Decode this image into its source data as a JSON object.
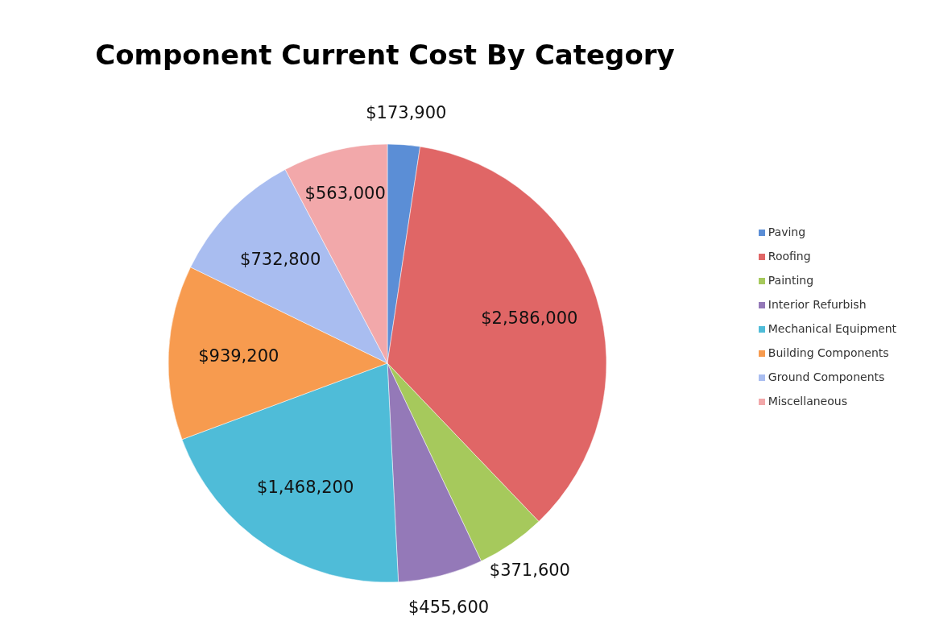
{
  "chart_data": {
    "type": "pie",
    "title": "Component Current Cost By Category",
    "categories": [
      "Paving",
      "Roofing",
      "Painting",
      "Interior Refurbish",
      "Mechanical Equipment",
      "Building Components",
      "Ground Components",
      "Miscellaneous"
    ],
    "values": [
      173900,
      2586000,
      371600,
      455600,
      1468200,
      939200,
      732800,
      563000
    ],
    "value_labels": [
      "$173,900",
      "$2,586,000",
      "$371,600",
      "$455,600",
      "$1,468,200",
      "$939,200",
      "$732,800",
      "$563,000"
    ],
    "colors": [
      "#5b8ed6",
      "#e06666",
      "#a6c95c",
      "#9479b8",
      "#4fbcd8",
      "#f79b4f",
      "#a9bdf0",
      "#f2a8aa"
    ],
    "legend": "right"
  }
}
